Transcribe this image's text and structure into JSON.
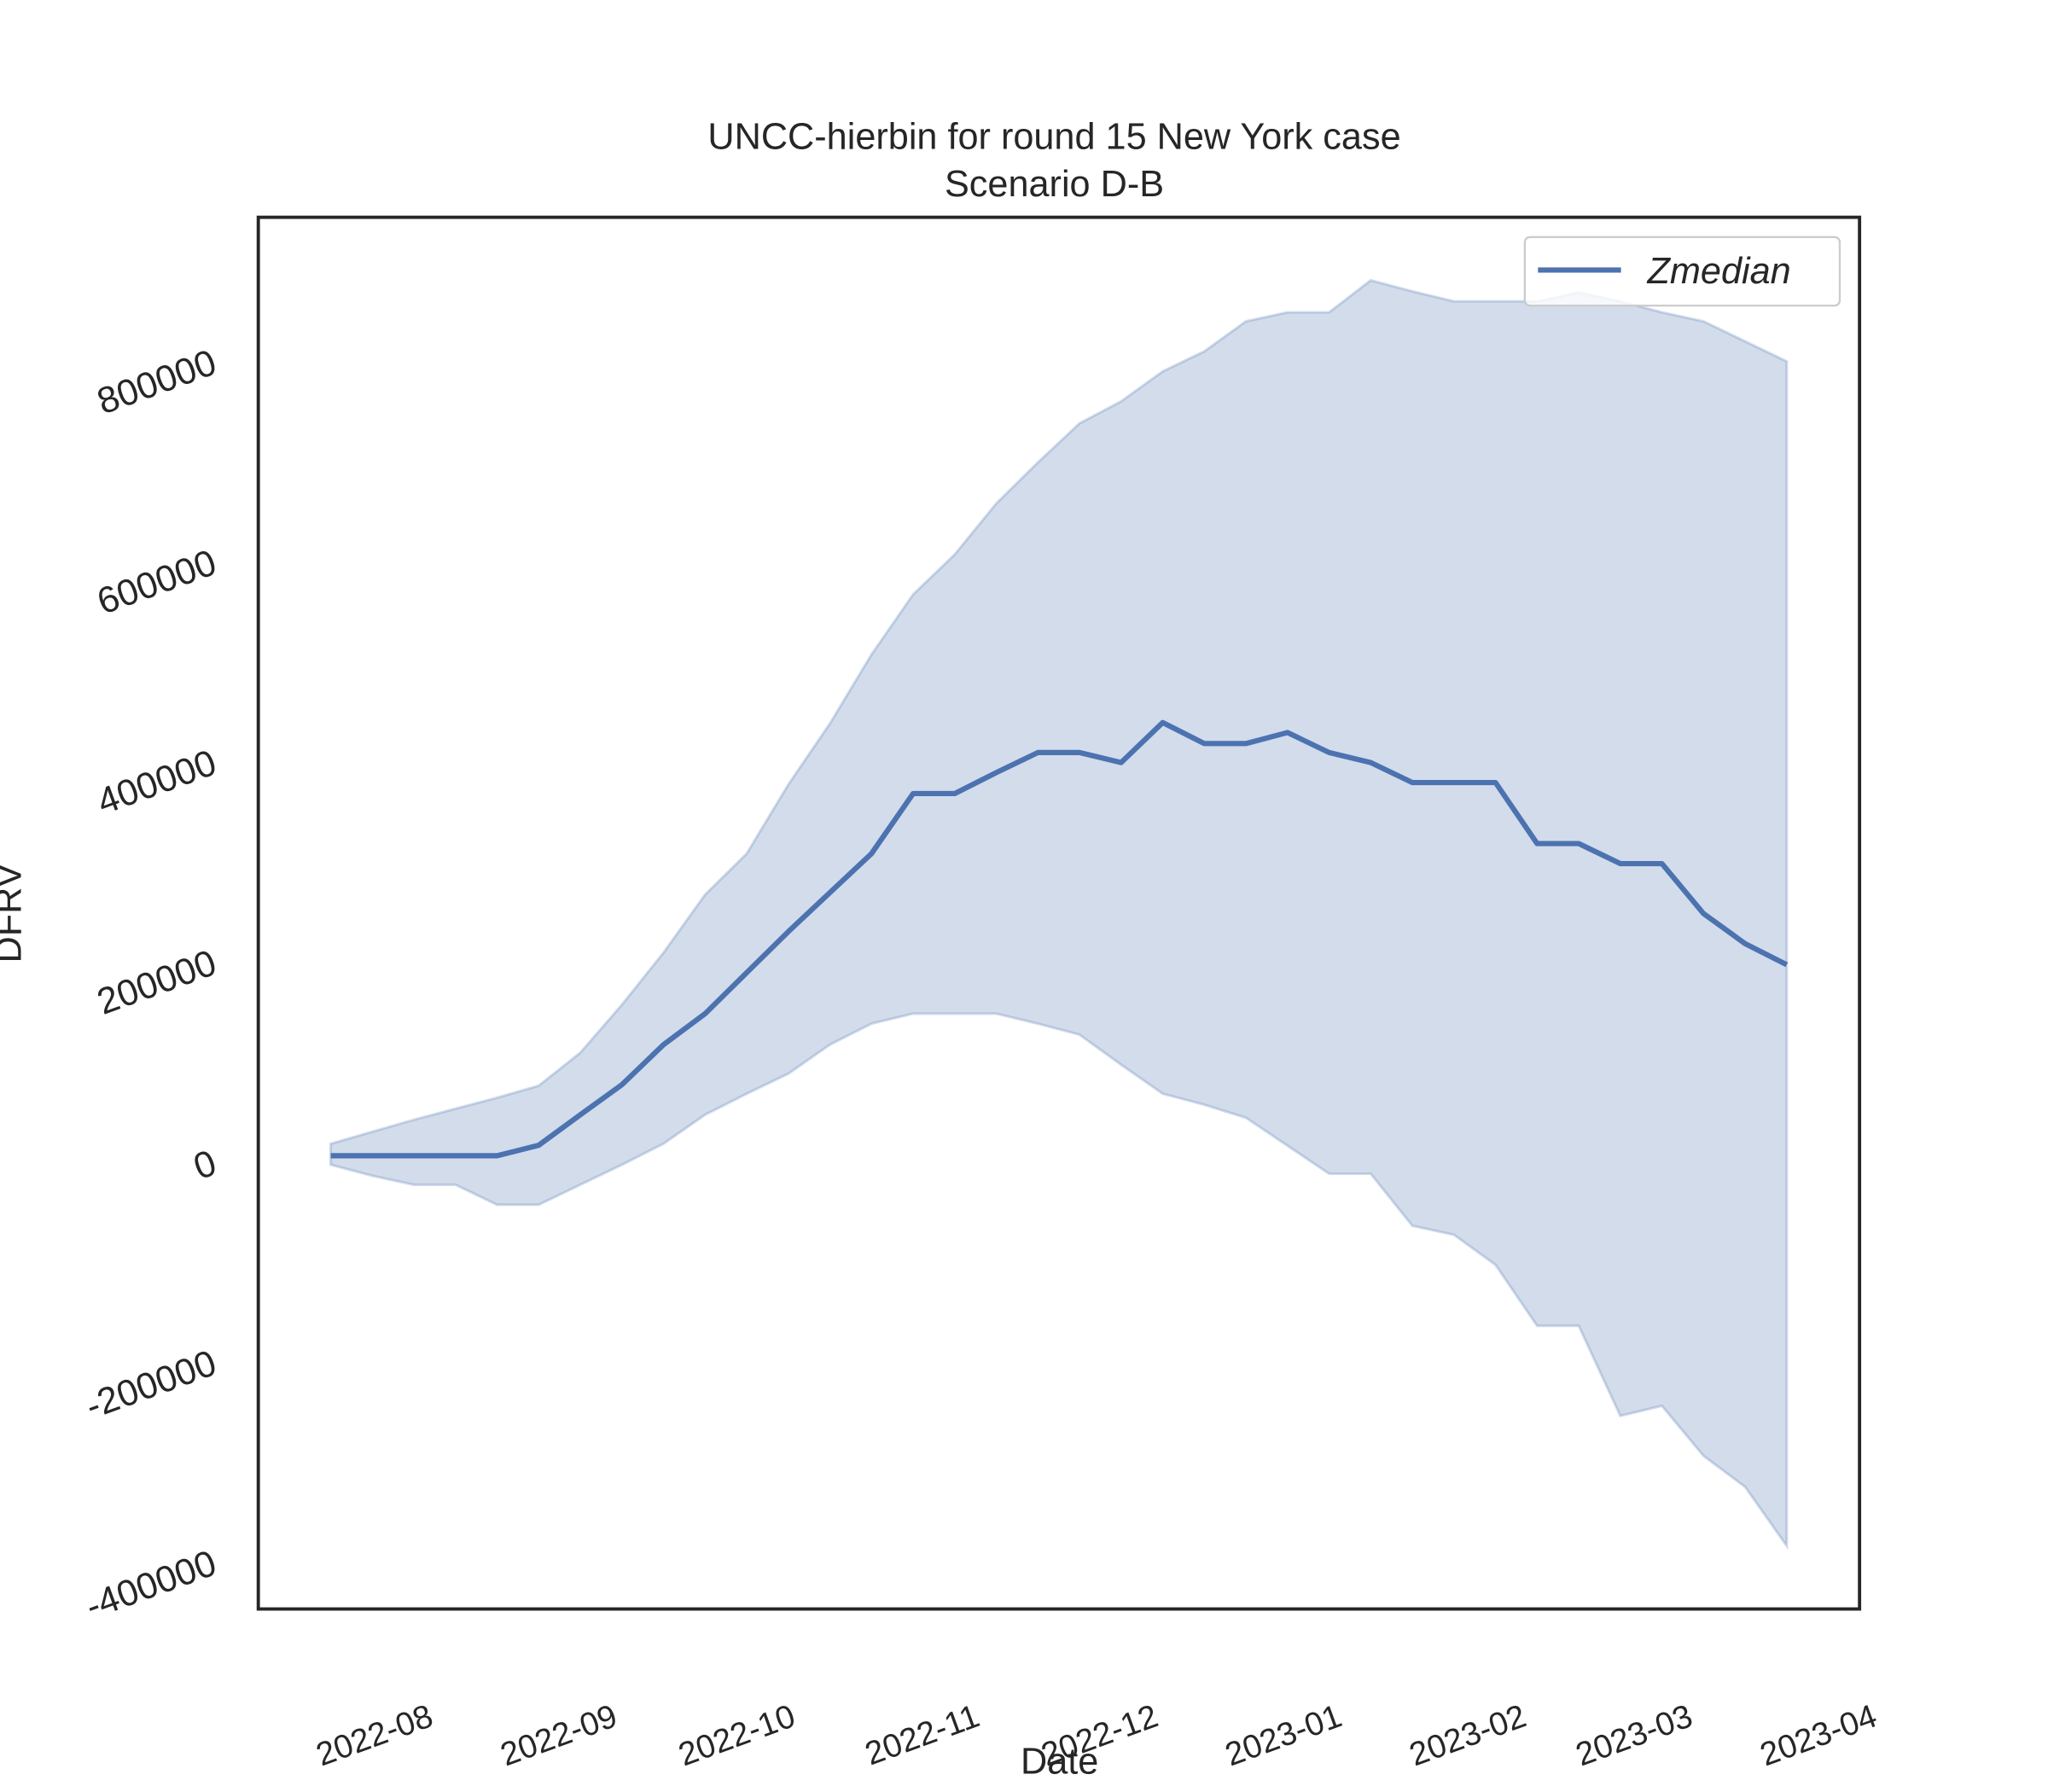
{
  "chart_data": {
    "type": "line",
    "title": "UNCC-hierbin for round 15 New York case",
    "subtitle": "Scenario D-B",
    "x_label": "Date",
    "y_label": "DFRV",
    "x": [
      0,
      1,
      2,
      3,
      4,
      5,
      6,
      7,
      8,
      9,
      10,
      11,
      12,
      13,
      14,
      15,
      16,
      17,
      18,
      19,
      20,
      21,
      22,
      23,
      24,
      25,
      26,
      27,
      28,
      29,
      30,
      31,
      32,
      33,
      34,
      35
    ],
    "series": [
      {
        "name": "Zmedian",
        "color": "#4c72b0",
        "values": [
          4000,
          4000,
          4000,
          4000,
          4000,
          14500,
          45000,
          75000,
          115000,
          146000,
          187000,
          228000,
          267000,
          306000,
          366000,
          366000,
          387000,
          407000,
          407000,
          397000,
          437000,
          416000,
          416000,
          427000,
          407000,
          397000,
          377000,
          377000,
          377000,
          316000,
          316000,
          296000,
          296000,
          246000,
          216000,
          195000
        ]
      }
    ],
    "band": {
      "color": "#4c72b0",
      "upper": [
        16000,
        28000,
        40000,
        51000,
        62000,
        74000,
        107000,
        155000,
        207000,
        265000,
        306000,
        375000,
        436000,
        505000,
        565000,
        605000,
        656000,
        697000,
        736000,
        758000,
        788000,
        808000,
        838000,
        847000,
        847000,
        879000,
        868000,
        858000,
        858000,
        858000,
        867000,
        858000,
        847000,
        838000,
        818000,
        798000
      ],
      "lower": [
        -5000,
        -16000,
        -25000,
        -25000,
        -45000,
        -45000,
        -25000,
        -5000,
        16000,
        45000,
        66000,
        86000,
        115000,
        136000,
        146000,
        146000,
        146000,
        136000,
        125000,
        95000,
        66000,
        55000,
        42000,
        14000,
        -14000,
        -14000,
        -66000,
        -75000,
        -105000,
        -166000,
        -166000,
        -256000,
        -246000,
        -296000,
        -327000,
        -386000
      ]
    },
    "xlim": [
      -1.74,
      36.75
    ],
    "xticks": [
      {
        "value": 0.86,
        "label": "2022-08"
      },
      {
        "value": 5.29,
        "label": "2022-09"
      },
      {
        "value": 9.57,
        "label": "2022-10"
      },
      {
        "value": 14.0,
        "label": "2022-11"
      },
      {
        "value": 18.29,
        "label": "2022-12"
      },
      {
        "value": 22.71,
        "label": "2023-01"
      },
      {
        "value": 27.14,
        "label": "2023-02"
      },
      {
        "value": 31.14,
        "label": "2023-03"
      },
      {
        "value": 35.57,
        "label": "2023-04"
      }
    ],
    "ylim": [
      -449000,
      942000
    ],
    "yticks": [
      -400000,
      -200000,
      0,
      200000,
      400000,
      600000,
      800000
    ],
    "legend": "upper right",
    "grid": false
  }
}
